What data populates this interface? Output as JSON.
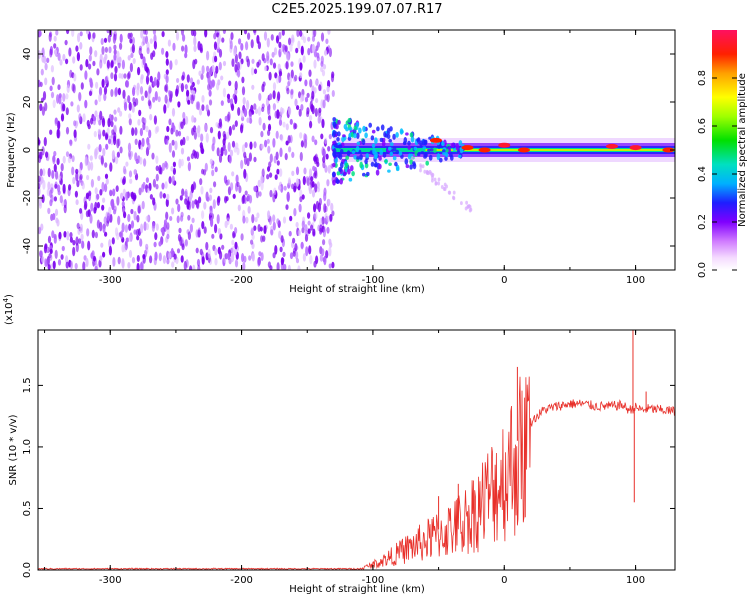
{
  "title": "C2E5.2025.199.07.07.R17",
  "chart_data": [
    {
      "type": "heatmap",
      "xlabel": "Height of straight line (km)",
      "ylabel": "Frequency (Hz)",
      "xlim": [
        -355,
        130
      ],
      "ylim": [
        -50,
        50
      ],
      "x_ticks": [
        "-300",
        "-200",
        "-100",
        "0",
        "100"
      ],
      "y_ticks": [
        "-40",
        "-20",
        "0",
        "20",
        "40"
      ],
      "colorbar": {
        "label": "Normalized spectral amplitude",
        "range": [
          0,
          1
        ],
        "ticks": [
          "0.0",
          "0.2",
          "0.4",
          "0.6",
          "0.8"
        ]
      },
      "regions": [
        {
          "x_range": [
            -355,
            -130
          ],
          "freq_range": [
            -50,
            50
          ],
          "amplitude": 0.1
        },
        {
          "x_range": [
            -130,
            130
          ],
          "freq_range": [
            -3,
            3
          ],
          "amplitude": 0.6
        }
      ],
      "peak_points": [
        {
          "x": -52,
          "freq": 4,
          "amplitude": 0.9
        },
        {
          "x": -28,
          "freq": 1,
          "amplitude": 0.9
        },
        {
          "x": -15,
          "freq": 0,
          "amplitude": 0.9
        },
        {
          "x": 0,
          "freq": 2,
          "amplitude": 0.95
        },
        {
          "x": 15,
          "freq": 0,
          "amplitude": 0.9
        },
        {
          "x": 82,
          "freq": 1.5,
          "amplitude": 0.95
        },
        {
          "x": 100,
          "freq": 1,
          "amplitude": 0.95
        },
        {
          "x": 125,
          "freq": 0,
          "amplitude": 0.9
        }
      ]
    },
    {
      "type": "line",
      "xlabel": "Height of straight line (km)",
      "ylabel": "SNR (10 * v/v)",
      "y_multiplier": "(x10",
      "y_multiplier_exp": "4",
      "y_multiplier_close": ")",
      "xlim": [
        -355,
        130
      ],
      "ylim": [
        0,
        1.95
      ],
      "x_ticks": [
        "-300",
        "-200",
        "-100",
        "0",
        "100"
      ],
      "y_ticks": [
        "0.0",
        "0.5",
        "1.0",
        "1.5"
      ],
      "series": [
        {
          "color": "#e8302a",
          "x": [
            -355,
            -300,
            -250,
            -200,
            -150,
            -110,
            -100,
            -90,
            -80,
            -70,
            -60,
            -50,
            -40,
            -30,
            -20,
            -10,
            0,
            10,
            20,
            30,
            40,
            50,
            60,
            70,
            80,
            90,
            95,
            100,
            105,
            110,
            120,
            130
          ],
          "y": [
            0.01,
            0.01,
            0.01,
            0.01,
            0.01,
            0.01,
            0.05,
            0.1,
            0.16,
            0.22,
            0.27,
            0.33,
            0.38,
            0.46,
            0.58,
            0.72,
            0.88,
            1.05,
            1.2,
            1.3,
            1.33,
            1.35,
            1.35,
            1.33,
            1.33,
            1.34,
            1.3,
            1.32,
            1.3,
            1.31,
            1.3,
            1.29
          ]
        }
      ],
      "spikes": [
        {
          "x": 10,
          "y": 1.65
        },
        {
          "x": -50,
          "y": 0.6
        },
        {
          "x": -35,
          "y": 0.7
        },
        {
          "x": 98,
          "y": 1.95
        },
        {
          "x": 99,
          "y": 0.55
        },
        {
          "x": 108,
          "y": 1.45
        }
      ]
    }
  ]
}
